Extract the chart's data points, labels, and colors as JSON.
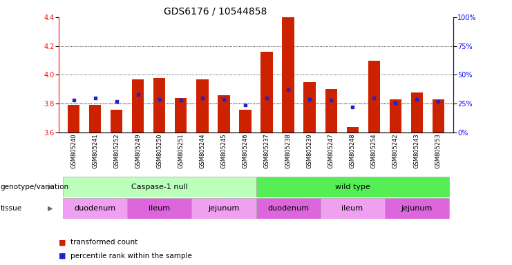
{
  "title": "GDS6176 / 10544858",
  "samples": [
    "GSM805240",
    "GSM805241",
    "GSM805252",
    "GSM805249",
    "GSM805250",
    "GSM805251",
    "GSM805244",
    "GSM805245",
    "GSM805246",
    "GSM805237",
    "GSM805238",
    "GSM805239",
    "GSM805247",
    "GSM805248",
    "GSM805254",
    "GSM805242",
    "GSM805243",
    "GSM805253"
  ],
  "bar_values": [
    3.79,
    3.79,
    3.76,
    3.97,
    3.98,
    3.84,
    3.97,
    3.86,
    3.76,
    4.16,
    4.4,
    3.95,
    3.9,
    3.64,
    4.1,
    3.83,
    3.88,
    3.83
  ],
  "percentile_values": [
    28,
    30,
    27,
    33,
    29,
    28,
    30,
    29,
    24,
    30,
    37,
    29,
    28,
    22,
    30,
    26,
    29,
    27
  ],
  "ylim_left": [
    3.6,
    4.4
  ],
  "ylim_right": [
    0,
    100
  ],
  "yticks_left": [
    3.6,
    3.8,
    4.0,
    4.2,
    4.4
  ],
  "yticks_right": [
    0,
    25,
    50,
    75,
    100
  ],
  "ytick_labels_right": [
    "0%",
    "25%",
    "50%",
    "75%",
    "100%"
  ],
  "grid_values": [
    3.8,
    4.0,
    4.2
  ],
  "bar_color": "#cc2200",
  "dot_color": "#2222cc",
  "genotype_groups": [
    {
      "label": "Caspase-1 null",
      "start": 0,
      "end": 9,
      "color": "#bbffbb"
    },
    {
      "label": "wild type",
      "start": 9,
      "end": 18,
      "color": "#55ee55"
    }
  ],
  "tissue_groups": [
    {
      "label": "duodenum",
      "start": 0,
      "end": 3,
      "color": "#f0a0f0"
    },
    {
      "label": "ileum",
      "start": 3,
      "end": 6,
      "color": "#dd66dd"
    },
    {
      "label": "jejunum",
      "start": 6,
      "end": 9,
      "color": "#f0a0f0"
    },
    {
      "label": "duodenum",
      "start": 9,
      "end": 12,
      "color": "#dd66dd"
    },
    {
      "label": "ileum",
      "start": 12,
      "end": 15,
      "color": "#f0a0f0"
    },
    {
      "label": "jejunum",
      "start": 15,
      "end": 18,
      "color": "#dd66dd"
    }
  ],
  "legend_items": [
    {
      "label": "transformed count",
      "color": "#cc2200"
    },
    {
      "label": "percentile rank within the sample",
      "color": "#2222cc"
    }
  ],
  "genotype_label": "genotype/variation",
  "tissue_label": "tissue",
  "title_fontsize": 10,
  "tick_fontsize": 7,
  "sample_fontsize": 6
}
